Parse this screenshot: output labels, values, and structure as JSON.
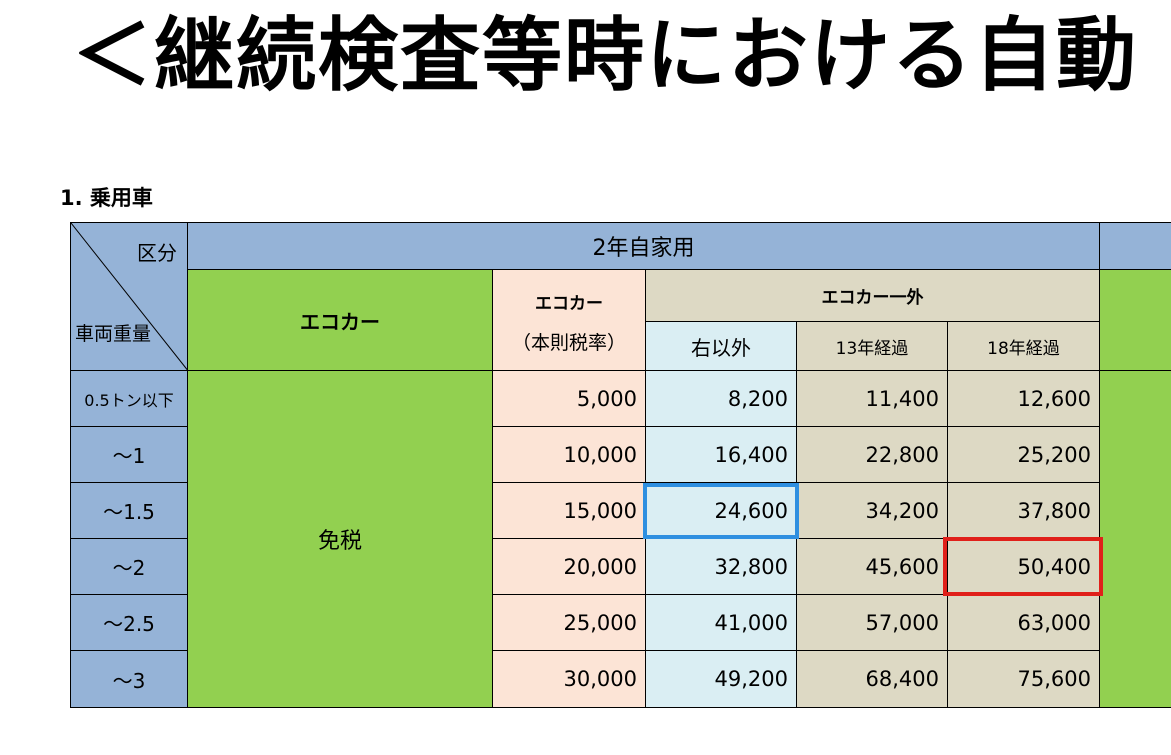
{
  "title": "＜継続検査等時における自動",
  "section_label": "1. 乗用車",
  "header": {
    "corner_top": "区分",
    "corner_bottom": "車両重量",
    "group_title": "2年自家用",
    "eco_car": "エコカー",
    "eco_car_base_line1": "エコカー",
    "eco_car_base_line2": "（本則税率）",
    "non_eco_car": "エコカー一外",
    "col_other": "右以外",
    "col_13yr": "13年経過",
    "col_18yr": "18年経過"
  },
  "exempt_label": "免税",
  "rows": [
    {
      "weight": "0.5トン以下",
      "base": "5,000",
      "other": "8,200",
      "y13": "11,400",
      "y18": "12,600"
    },
    {
      "weight": "～1",
      "base": "10,000",
      "other": "16,400",
      "y13": "22,800",
      "y18": "25,200"
    },
    {
      "weight": "～1.5",
      "base": "15,000",
      "other": "24,600",
      "y13": "34,200",
      "y18": "37,800"
    },
    {
      "weight": "～2",
      "base": "20,000",
      "other": "32,800",
      "y13": "45,600",
      "y18": "50,400"
    },
    {
      "weight": "～2.5",
      "base": "25,000",
      "other": "41,000",
      "y13": "57,000",
      "y18": "63,000"
    },
    {
      "weight": "～3",
      "base": "30,000",
      "other": "49,200",
      "y13": "68,400",
      "y18": "75,600"
    }
  ],
  "colors": {
    "header_blue": "#95b3d7",
    "eco_green": "#92d050",
    "base_peach": "#fce4d6",
    "other_lightblue": "#daeef3",
    "old_tan": "#ddd9c4",
    "highlight_blue": "#2e8fe0",
    "highlight_red": "#e0201a"
  },
  "highlights": [
    {
      "row": 2,
      "column": "other",
      "color": "blue"
    },
    {
      "row": 3,
      "column": "y18",
      "color": "red"
    }
  ]
}
